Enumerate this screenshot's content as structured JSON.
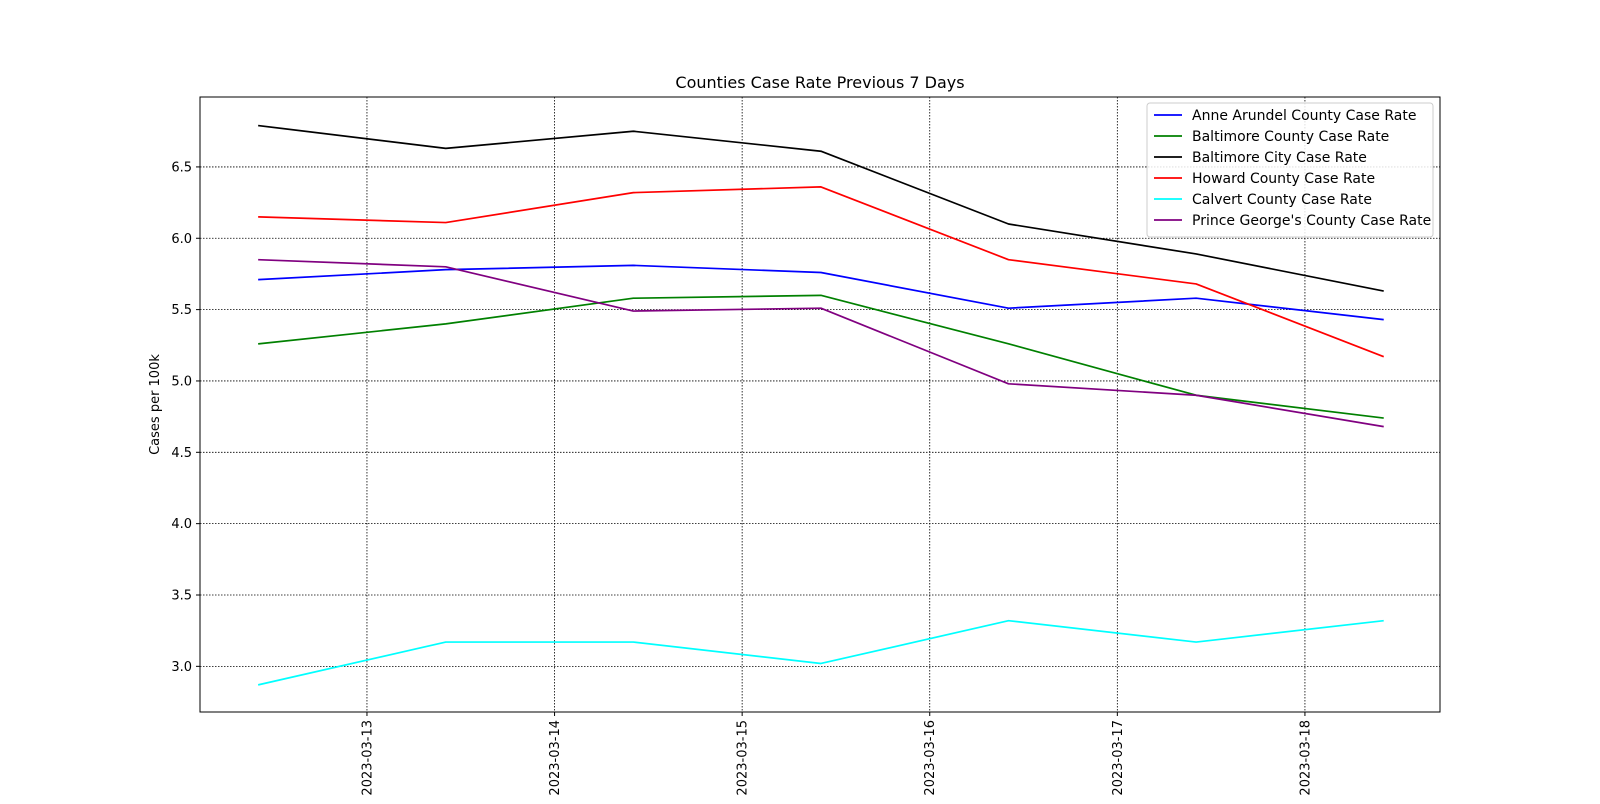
{
  "chart_data": {
    "type": "line",
    "title": "Counties Case Rate Previous 7 Days",
    "xlabel": "",
    "ylabel": "Cases per 100k",
    "x_ticks": [
      "2023-03-13",
      "2023-03-14",
      "2023-03-15",
      "2023-03-16",
      "2023-03-17",
      "2023-03-18"
    ],
    "x_tick_positions": [
      1,
      2,
      3,
      4,
      5,
      6
    ],
    "x": [
      0.42,
      1.42,
      2.42,
      3.42,
      4.42,
      5.42,
      6.42
    ],
    "xlim": [
      0.11,
      6.72
    ],
    "ylim": [
      2.68,
      6.99
    ],
    "y_ticks": [
      3.0,
      3.5,
      4.0,
      4.5,
      5.0,
      5.5,
      6.0,
      6.5
    ],
    "y_tick_labels": [
      "3.0",
      "3.5",
      "4.0",
      "4.5",
      "5.0",
      "5.5",
      "6.0",
      "6.5"
    ],
    "grid": true,
    "legend_position": "top-right",
    "series": [
      {
        "name": "Anne Arundel County Case Rate",
        "color": "#0000ff",
        "values": [
          5.71,
          5.78,
          5.81,
          5.76,
          5.51,
          5.58,
          5.43
        ]
      },
      {
        "name": "Baltimore County Case Rate",
        "color": "#008000",
        "values": [
          5.26,
          5.4,
          5.58,
          5.6,
          5.26,
          4.9,
          4.74
        ]
      },
      {
        "name": "Baltimore City Case Rate",
        "color": "#000000",
        "values": [
          6.79,
          6.63,
          6.75,
          6.61,
          6.1,
          5.89,
          5.63
        ]
      },
      {
        "name": "Howard County Case Rate",
        "color": "#ff0000",
        "values": [
          6.15,
          6.11,
          6.32,
          6.36,
          5.85,
          5.68,
          5.17
        ]
      },
      {
        "name": "Calvert County Case Rate",
        "color": "#00ffff",
        "values": [
          2.87,
          3.17,
          3.17,
          3.02,
          3.32,
          3.17,
          3.32
        ]
      },
      {
        "name": "Prince George's County Case Rate",
        "color": "#800080",
        "values": [
          5.85,
          5.8,
          5.49,
          5.51,
          4.98,
          4.9,
          4.68
        ]
      }
    ]
  }
}
